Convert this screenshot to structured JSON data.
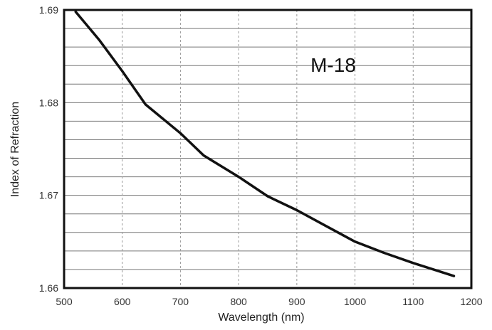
{
  "chart_data": {
    "type": "line",
    "annotation": "M-18",
    "xlabel": "Wavelength (nm)",
    "ylabel": "Index of Refraction",
    "xlim": [
      500,
      1200
    ],
    "ylim": [
      1.66,
      1.69
    ],
    "x_ticks": [
      "500",
      "600",
      "700",
      "800",
      "900",
      "1000",
      "1100",
      "1200"
    ],
    "y_ticks": [
      "1.66",
      "1.67",
      "1.68",
      "1.69"
    ],
    "grid": true,
    "legend": "none",
    "series": [
      {
        "x": [
          520,
          560,
          600,
          640,
          700,
          740,
          800,
          850,
          900,
          950,
          1000,
          1050,
          1100,
          1170
        ],
        "y": [
          1.6898,
          1.6868,
          1.6834,
          1.6798,
          1.6767,
          1.6743,
          1.672,
          1.6699,
          1.6684,
          1.6667,
          1.665,
          1.6638,
          1.6627,
          1.6613
        ]
      }
    ]
  }
}
